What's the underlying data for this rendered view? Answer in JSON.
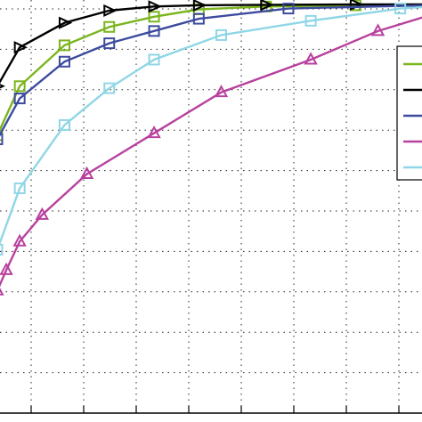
{
  "chart_data": {
    "type": "line",
    "grid": true,
    "legend_placement": "right",
    "series": [
      {
        "color": "#7ab51d",
        "marker": "square",
        "x": [
          0,
          5,
          15,
          25,
          35,
          45,
          60,
          80,
          100
        ],
        "y": [
          0.68,
          0.8,
          0.9,
          0.945,
          0.97,
          0.988,
          0.995,
          0.998,
          0.999
        ]
      },
      {
        "color": "#000000",
        "marker": "triangle-right",
        "x": [
          0,
          5,
          15,
          25,
          35,
          45,
          60,
          80,
          100
        ],
        "y": [
          0.8,
          0.895,
          0.955,
          0.985,
          0.995,
          0.998,
          0.999,
          1.0,
          1.0
        ]
      },
      {
        "color": "#3d4b9e",
        "marker": "square",
        "x": [
          0,
          5,
          15,
          25,
          35,
          45,
          65,
          100
        ],
        "y": [
          0.67,
          0.77,
          0.86,
          0.905,
          0.935,
          0.965,
          0.99,
          0.999
        ]
      },
      {
        "color": "#b8419e",
        "marker": "triangle-up",
        "x": [
          0,
          2,
          5,
          10,
          20,
          35,
          50,
          70,
          85,
          100
        ],
        "y": [
          0.3,
          0.35,
          0.42,
          0.485,
          0.585,
          0.685,
          0.785,
          0.865,
          0.935,
          0.985
        ]
      },
      {
        "color": "#8fd6e6",
        "marker": "square",
        "x": [
          0,
          5,
          15,
          25,
          35,
          50,
          70,
          90,
          100
        ],
        "y": [
          0.4,
          0.55,
          0.705,
          0.795,
          0.865,
          0.925,
          0.96,
          0.99,
          0.997
        ]
      }
    ],
    "xlim": [
      0,
      100
    ],
    "ylim": [
      0,
      1
    ]
  }
}
